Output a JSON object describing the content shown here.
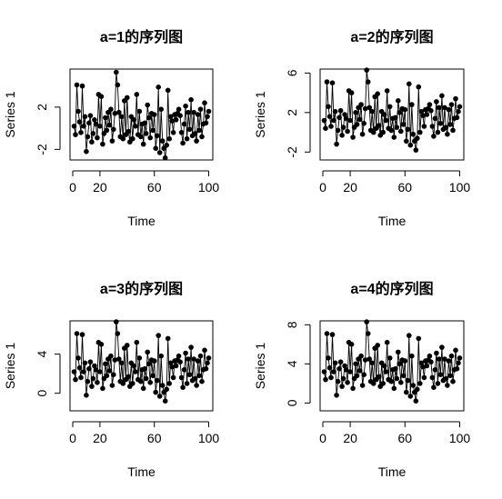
{
  "chart_data": [
    {
      "type": "line",
      "title": "a=1的序列图",
      "xlabel": "Time",
      "ylabel": "Series 1",
      "xlim": [
        -2,
        103
      ],
      "ylim": [
        -3.0,
        5.6
      ],
      "xticks": [
        0,
        20,
        60,
        100
      ],
      "yticks": [
        -2,
        2
      ],
      "x": [
        1,
        2,
        3,
        4,
        5,
        6,
        7,
        8,
        9,
        10,
        11,
        12,
        13,
        14,
        15,
        16,
        17,
        18,
        19,
        20,
        21,
        22,
        23,
        24,
        25,
        26,
        27,
        28,
        29,
        30,
        31,
        32,
        33,
        34,
        35,
        36,
        37,
        38,
        39,
        40,
        41,
        42,
        43,
        44,
        45,
        46,
        47,
        48,
        49,
        50,
        51,
        52,
        53,
        54,
        55,
        56,
        57,
        58,
        59,
        60,
        61,
        62,
        63,
        64,
        65,
        66,
        67,
        68,
        69,
        70,
        71,
        72,
        73,
        74,
        75,
        76,
        77,
        78,
        79,
        80,
        81,
        82,
        83,
        84,
        85,
        86,
        87,
        88,
        89,
        90,
        91,
        92,
        93,
        94,
        95,
        96,
        97,
        98,
        99,
        100
      ],
      "series": [
        {
          "values": [
            0.2,
            -0.6,
            4.1,
            1.6,
            0.6,
            -0.4,
            4.0,
            0.2,
            1.1,
            -2.2,
            -0.8,
            0.5,
            1.2,
            -1.3,
            -0.5,
            0.8,
            0.4,
            -0.9,
            3.2,
            0.2,
            3.0,
            -1.5,
            -0.5,
            1.0,
            -0.2,
            1.5,
            0.3,
            1.8,
            -1.2,
            -0.1,
            1.4,
            5.3,
            4.1,
            1.5,
            -0.8,
            1.1,
            -1.0,
            2.6,
            -0.6,
            2.9,
            -0.3,
            -1.3,
            1.1,
            -1.0,
            0.8,
            0.2,
            3.2,
            -0.6,
            1.6,
            -0.8,
            0.4,
            -1.5,
            0.5,
            -0.5,
            2.2,
            1.0,
            -0.9,
            1.4,
            -0.2,
            1.3,
            -1.9,
            -0.7,
            3.9,
            -2.3,
            1.8,
            -1.2,
            -1.9,
            -2.8,
            -1.6,
            3.6,
            -1.0,
            1.1,
            0.7,
            -0.4,
            1.3,
            0.8,
            1.4,
            1.8,
            1.2,
            -0.4,
            -1.4,
            0.4,
            2.1,
            -1.0,
            1.5,
            -0.1,
            2.7,
            -0.7,
            1.5,
            -0.5,
            -1.2,
            1.3,
            -0.2,
            1.8,
            -0.8,
            0.4,
            2.4,
            0.5,
            1.1,
            1.6
          ]
        }
      ]
    },
    {
      "type": "line",
      "title": "a=2的序列图",
      "xlabel": "Time",
      "ylabel": "Series 1",
      "xlim": [
        -2,
        103
      ],
      "ylim": [
        -2.8,
        6.4
      ],
      "xticks": [
        0,
        20,
        60,
        100
      ],
      "yticks": [
        -2,
        2,
        6
      ],
      "x": [
        1,
        2,
        3,
        4,
        5,
        6,
        7,
        8,
        9,
        10,
        11,
        12,
        13,
        14,
        15,
        16,
        17,
        18,
        19,
        20,
        21,
        22,
        23,
        24,
        25,
        26,
        27,
        28,
        29,
        30,
        31,
        32,
        33,
        34,
        35,
        36,
        37,
        38,
        39,
        40,
        41,
        42,
        43,
        44,
        45,
        46,
        47,
        48,
        49,
        50,
        51,
        52,
        53,
        54,
        55,
        56,
        57,
        58,
        59,
        60,
        61,
        62,
        63,
        64,
        65,
        66,
        67,
        68,
        69,
        70,
        71,
        72,
        73,
        74,
        75,
        76,
        77,
        78,
        79,
        80,
        81,
        82,
        83,
        84,
        85,
        86,
        87,
        88,
        89,
        90,
        91,
        92,
        93,
        94,
        95,
        96,
        97,
        98,
        99,
        100
      ],
      "series": [
        {
          "values": [
            1.2,
            0.4,
            5.1,
            2.6,
            1.6,
            0.6,
            5.0,
            1.2,
            2.1,
            -1.2,
            0.2,
            1.5,
            2.2,
            -0.3,
            0.5,
            1.8,
            1.4,
            0.1,
            4.2,
            1.2,
            4.0,
            -0.5,
            0.5,
            2.0,
            0.8,
            2.5,
            1.3,
            2.8,
            -0.2,
            0.9,
            2.4,
            6.3,
            5.1,
            2.5,
            0.2,
            2.1,
            0.0,
            3.6,
            0.4,
            3.9,
            0.7,
            -0.3,
            2.1,
            0.0,
            1.8,
            1.2,
            4.2,
            0.4,
            2.6,
            0.2,
            1.4,
            -0.5,
            1.5,
            0.5,
            3.2,
            2.0,
            0.1,
            2.4,
            0.8,
            2.3,
            -0.9,
            0.3,
            4.9,
            -1.3,
            2.8,
            -0.2,
            -0.9,
            -1.8,
            -0.6,
            4.6,
            0.0,
            2.1,
            1.7,
            0.6,
            2.3,
            1.8,
            2.4,
            2.8,
            2.2,
            0.6,
            -0.4,
            1.4,
            3.1,
            0.0,
            2.5,
            0.9,
            3.7,
            0.3,
            2.5,
            0.5,
            -0.2,
            2.3,
            0.8,
            2.8,
            0.2,
            1.4,
            3.4,
            1.5,
            2.1,
            2.6
          ]
        }
      ]
    },
    {
      "type": "line",
      "title": "a=3的序列图",
      "xlabel": "Time",
      "ylabel": "Series 1",
      "xlim": [
        -2,
        103
      ],
      "ylim": [
        -1.8,
        7.4
      ],
      "xticks": [
        0,
        20,
        60,
        100
      ],
      "yticks": [
        0,
        4
      ],
      "x": [
        1,
        2,
        3,
        4,
        5,
        6,
        7,
        8,
        9,
        10,
        11,
        12,
        13,
        14,
        15,
        16,
        17,
        18,
        19,
        20,
        21,
        22,
        23,
        24,
        25,
        26,
        27,
        28,
        29,
        30,
        31,
        32,
        33,
        34,
        35,
        36,
        37,
        38,
        39,
        40,
        41,
        42,
        43,
        44,
        45,
        46,
        47,
        48,
        49,
        50,
        51,
        52,
        53,
        54,
        55,
        56,
        57,
        58,
        59,
        60,
        61,
        62,
        63,
        64,
        65,
        66,
        67,
        68,
        69,
        70,
        71,
        72,
        73,
        74,
        75,
        76,
        77,
        78,
        79,
        80,
        81,
        82,
        83,
        84,
        85,
        86,
        87,
        88,
        89,
        90,
        91,
        92,
        93,
        94,
        95,
        96,
        97,
        98,
        99,
        100
      ],
      "series": [
        {
          "values": [
            2.2,
            1.4,
            6.1,
            3.6,
            2.6,
            1.6,
            6.0,
            2.2,
            3.1,
            -0.2,
            1.2,
            2.5,
            3.2,
            0.7,
            1.5,
            2.8,
            2.4,
            1.1,
            5.2,
            2.2,
            5.0,
            0.5,
            1.5,
            3.0,
            1.8,
            3.5,
            2.3,
            3.8,
            0.8,
            1.9,
            3.4,
            7.3,
            6.1,
            3.5,
            1.2,
            3.1,
            1.0,
            4.6,
            1.4,
            4.9,
            1.7,
            0.7,
            3.1,
            1.0,
            2.8,
            2.2,
            5.2,
            1.4,
            3.6,
            1.2,
            2.4,
            0.5,
            2.5,
            1.5,
            4.2,
            3.0,
            1.1,
            3.4,
            1.8,
            3.3,
            0.1,
            1.3,
            5.9,
            -0.3,
            3.8,
            0.8,
            0.1,
            -0.8,
            0.4,
            5.6,
            1.0,
            3.1,
            2.7,
            1.6,
            3.3,
            2.8,
            3.4,
            3.8,
            3.2,
            1.6,
            0.6,
            2.4,
            4.1,
            1.0,
            3.5,
            1.9,
            4.7,
            1.3,
            3.5,
            1.5,
            0.8,
            3.3,
            1.8,
            3.8,
            1.2,
            2.4,
            4.4,
            2.5,
            3.1,
            3.6
          ]
        }
      ]
    },
    {
      "type": "line",
      "title": "a=4的序列图",
      "xlabel": "Time",
      "ylabel": "Series 1",
      "xlim": [
        -2,
        103
      ],
      "ylim": [
        -0.8,
        8.4
      ],
      "xticks": [
        0,
        20,
        60,
        100
      ],
      "yticks": [
        0,
        4,
        8
      ],
      "x": [
        1,
        2,
        3,
        4,
        5,
        6,
        7,
        8,
        9,
        10,
        11,
        12,
        13,
        14,
        15,
        16,
        17,
        18,
        19,
        20,
        21,
        22,
        23,
        24,
        25,
        26,
        27,
        28,
        29,
        30,
        31,
        32,
        33,
        34,
        35,
        36,
        37,
        38,
        39,
        40,
        41,
        42,
        43,
        44,
        45,
        46,
        47,
        48,
        49,
        50,
        51,
        52,
        53,
        54,
        55,
        56,
        57,
        58,
        59,
        60,
        61,
        62,
        63,
        64,
        65,
        66,
        67,
        68,
        69,
        70,
        71,
        72,
        73,
        74,
        75,
        76,
        77,
        78,
        79,
        80,
        81,
        82,
        83,
        84,
        85,
        86,
        87,
        88,
        89,
        90,
        91,
        92,
        93,
        94,
        95,
        96,
        97,
        98,
        99,
        100
      ],
      "series": [
        {
          "values": [
            3.2,
            2.4,
            7.1,
            4.6,
            3.6,
            2.6,
            7.0,
            3.2,
            4.1,
            0.8,
            2.2,
            3.5,
            4.2,
            1.7,
            2.5,
            3.8,
            3.4,
            2.1,
            6.2,
            3.2,
            6.0,
            1.5,
            2.5,
            4.0,
            2.8,
            4.5,
            3.3,
            4.8,
            1.8,
            2.9,
            4.4,
            8.3,
            7.1,
            4.5,
            2.2,
            4.1,
            2.0,
            5.6,
            2.4,
            5.9,
            2.7,
            1.7,
            4.1,
            2.0,
            3.8,
            3.2,
            6.2,
            2.4,
            4.6,
            2.2,
            3.4,
            1.5,
            3.5,
            2.5,
            5.2,
            4.0,
            2.1,
            4.4,
            2.8,
            4.3,
            1.1,
            2.3,
            6.9,
            0.7,
            4.8,
            1.8,
            1.1,
            0.2,
            1.4,
            6.6,
            2.0,
            4.1,
            3.7,
            2.6,
            4.3,
            3.8,
            4.4,
            4.8,
            4.2,
            2.6,
            1.6,
            3.4,
            5.1,
            2.0,
            4.5,
            2.9,
            5.7,
            2.3,
            4.5,
            2.5,
            1.8,
            4.3,
            2.8,
            4.8,
            2.2,
            3.4,
            5.4,
            3.5,
            4.1,
            4.6
          ]
        }
      ]
    }
  ]
}
